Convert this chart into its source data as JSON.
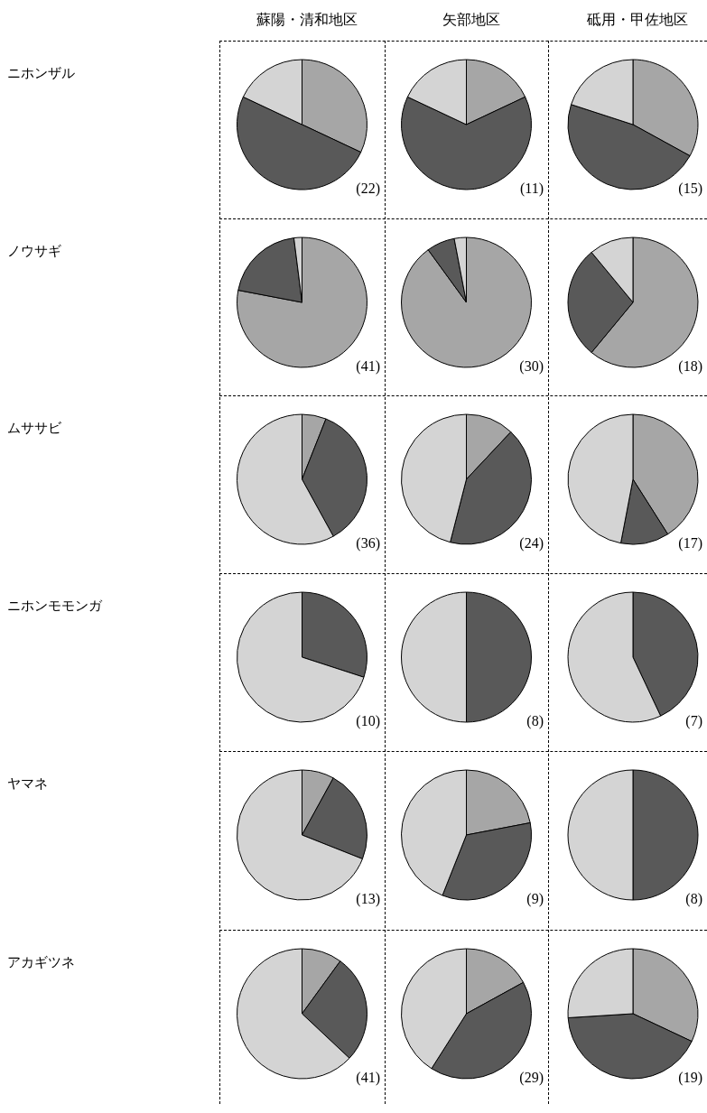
{
  "chart_data": [
    {
      "type": "pie",
      "title": "蘇陽・清和地区",
      "ylabel": "ニホンザル",
      "categories": [
        null,
        null,
        null
      ],
      "values": [
        32,
        50,
        18
      ],
      "colors": [
        "#a6a6a6",
        "#595959",
        "#d4d4d4"
      ],
      "annotations": [
        "(22)"
      ]
    },
    {
      "type": "pie",
      "title": "矢部地区",
      "categories": [
        null,
        null,
        null
      ],
      "values": [
        18,
        64,
        18
      ],
      "colors": [
        "#a6a6a6",
        "#595959",
        "#d4d4d4"
      ],
      "annotations": [
        "(11)"
      ]
    },
    {
      "type": "pie",
      "title": "砥用・甲佐地区",
      "categories": [
        null,
        null,
        null
      ],
      "values": [
        33,
        47,
        20
      ],
      "colors": [
        "#a6a6a6",
        "#595959",
        "#d4d4d4"
      ],
      "annotations": [
        "(15)"
      ]
    },
    {
      "type": "pie",
      "ylabel": "ノウサギ",
      "categories": [
        null,
        null,
        null
      ],
      "values": [
        78,
        20,
        2
      ],
      "colors": [
        "#a6a6a6",
        "#595959",
        "#d4d4d4"
      ],
      "annotations": [
        "(41)"
      ]
    },
    {
      "type": "pie",
      "categories": [
        null,
        null,
        null
      ],
      "values": [
        90,
        7,
        3
      ],
      "colors": [
        "#a6a6a6",
        "#595959",
        "#d4d4d4"
      ],
      "annotations": [
        "(30)"
      ]
    },
    {
      "type": "pie",
      "categories": [
        null,
        null,
        null
      ],
      "values": [
        61,
        28,
        11
      ],
      "colors": [
        "#a6a6a6",
        "#595959",
        "#d4d4d4"
      ],
      "annotations": [
        "(18)"
      ]
    },
    {
      "type": "pie",
      "ylabel": "ムササビ",
      "categories": [
        null,
        null,
        null
      ],
      "values": [
        6,
        36,
        58
      ],
      "colors": [
        "#a6a6a6",
        "#595959",
        "#d4d4d4"
      ],
      "annotations": [
        "(36)"
      ]
    },
    {
      "type": "pie",
      "categories": [
        null,
        null,
        null
      ],
      "values": [
        12,
        42,
        46
      ],
      "colors": [
        "#a6a6a6",
        "#595959",
        "#d4d4d4"
      ],
      "annotations": [
        "(24)"
      ]
    },
    {
      "type": "pie",
      "categories": [
        null,
        null,
        null
      ],
      "values": [
        41,
        12,
        47
      ],
      "colors": [
        "#a6a6a6",
        "#595959",
        "#d4d4d4"
      ],
      "annotations": [
        "(17)"
      ]
    },
    {
      "type": "pie",
      "ylabel": "ニホンモモンガ",
      "categories": [
        null,
        null
      ],
      "values": [
        30,
        70
      ],
      "colors": [
        "#595959",
        "#d4d4d4"
      ],
      "annotations": [
        "(10)"
      ]
    },
    {
      "type": "pie",
      "categories": [
        null,
        null
      ],
      "values": [
        50,
        50
      ],
      "colors": [
        "#595959",
        "#d4d4d4"
      ],
      "annotations": [
        "(8)"
      ]
    },
    {
      "type": "pie",
      "categories": [
        null,
        null
      ],
      "values": [
        43,
        57
      ],
      "colors": [
        "#595959",
        "#d4d4d4"
      ],
      "annotations": [
        "(7)"
      ]
    },
    {
      "type": "pie",
      "ylabel": "ヤマネ",
      "categories": [
        null,
        null,
        null
      ],
      "values": [
        8,
        23,
        69
      ],
      "colors": [
        "#a6a6a6",
        "#595959",
        "#d4d4d4"
      ],
      "annotations": [
        "(13)"
      ]
    },
    {
      "type": "pie",
      "categories": [
        null,
        null,
        null
      ],
      "values": [
        22,
        34,
        44
      ],
      "colors": [
        "#a6a6a6",
        "#595959",
        "#d4d4d4"
      ],
      "annotations": [
        "(9)"
      ]
    },
    {
      "type": "pie",
      "categories": [
        null,
        null
      ],
      "values": [
        50,
        50
      ],
      "colors": [
        "#595959",
        "#d4d4d4"
      ],
      "annotations": [
        "(8)"
      ]
    },
    {
      "type": "pie",
      "ylabel": "アカギツネ",
      "categories": [
        null,
        null,
        null
      ],
      "values": [
        10,
        27,
        63
      ],
      "colors": [
        "#a6a6a6",
        "#595959",
        "#d4d4d4"
      ],
      "annotations": [
        "(41)"
      ]
    },
    {
      "type": "pie",
      "categories": [
        null,
        null,
        null
      ],
      "values": [
        17,
        42,
        41
      ],
      "colors": [
        "#a6a6a6",
        "#595959",
        "#d4d4d4"
      ],
      "annotations": [
        "(29)"
      ]
    },
    {
      "type": "pie",
      "categories": [
        null,
        null,
        null
      ],
      "values": [
        32,
        42,
        26
      ],
      "colors": [
        "#a6a6a6",
        "#595959",
        "#d4d4d4"
      ],
      "annotations": [
        "(19)"
      ]
    }
  ]
}
